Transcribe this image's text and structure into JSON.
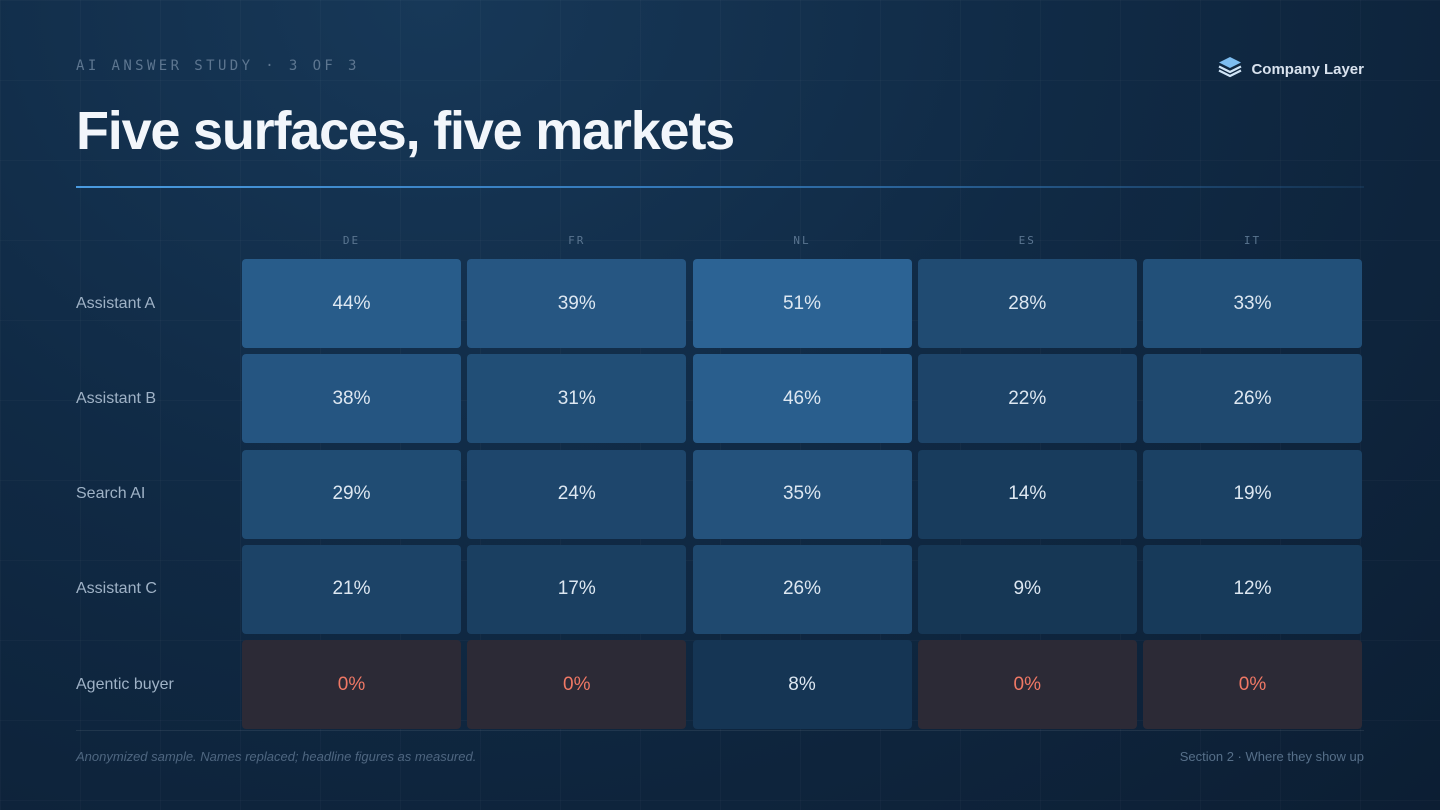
{
  "header": {
    "eyebrow": "AI ANSWER STUDY · 3 OF 3",
    "brand": "Company Layer",
    "brand_icon": "layers-icon",
    "title": "Five surfaces, five markets"
  },
  "chart_data": {
    "type": "heatmap",
    "columns": [
      "DE",
      "FR",
      "NL",
      "ES",
      "IT"
    ],
    "rows": [
      "Assistant A",
      "Assistant B",
      "Search AI",
      "Assistant C",
      "Agentic buyer"
    ],
    "values": [
      [
        44,
        39,
        51,
        28,
        33
      ],
      [
        38,
        31,
        46,
        22,
        26
      ],
      [
        29,
        24,
        35,
        14,
        19
      ],
      [
        21,
        17,
        26,
        9,
        12
      ],
      [
        0,
        0,
        8,
        0,
        0
      ]
    ],
    "value_suffix": "%",
    "colors": {
      "zero_text": "#f07865",
      "zero_cell": "#2c2a36",
      "high_cell": "#2c6394",
      "low_cell": "#112d48"
    }
  },
  "footer": {
    "note": "Anonymized sample. Names replaced; headline figures as measured.",
    "section": "Section 2 · Where they show up"
  }
}
